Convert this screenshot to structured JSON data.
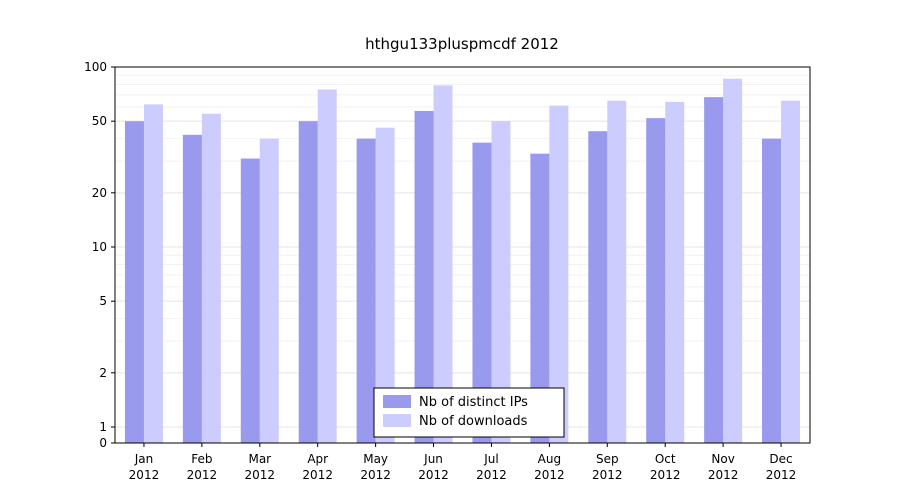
{
  "title": "hthgu133pluspmcdf 2012",
  "chart_data": {
    "type": "bar",
    "title": "hthgu133pluspmcdf 2012",
    "categories": [
      "Jan",
      "Feb",
      "Mar",
      "Apr",
      "May",
      "Jun",
      "Jul",
      "Aug",
      "Sep",
      "Oct",
      "Nov",
      "Dec"
    ],
    "year_label": "2012",
    "series": [
      {
        "name": "Nb of distinct IPs",
        "color": "#9999ee",
        "values": [
          50,
          42,
          31,
          50,
          40,
          57,
          38,
          33,
          44,
          52,
          68,
          40
        ]
      },
      {
        "name": "Nb of downloads",
        "color": "#ccccff",
        "values": [
          62,
          55,
          40,
          75,
          46,
          79,
          50,
          61,
          65,
          64,
          86,
          65
        ]
      }
    ],
    "yscale": "log",
    "yticks": [
      0,
      1,
      2,
      5,
      10,
      20,
      50,
      100
    ],
    "ylim": [
      0,
      100
    ],
    "grid": "horizontal",
    "grid_major_color": "#e5e5e5",
    "grid_minor_color": "#f2f2f2",
    "legend_position": "bottom-center-inside",
    "axis_color": "#000000"
  }
}
